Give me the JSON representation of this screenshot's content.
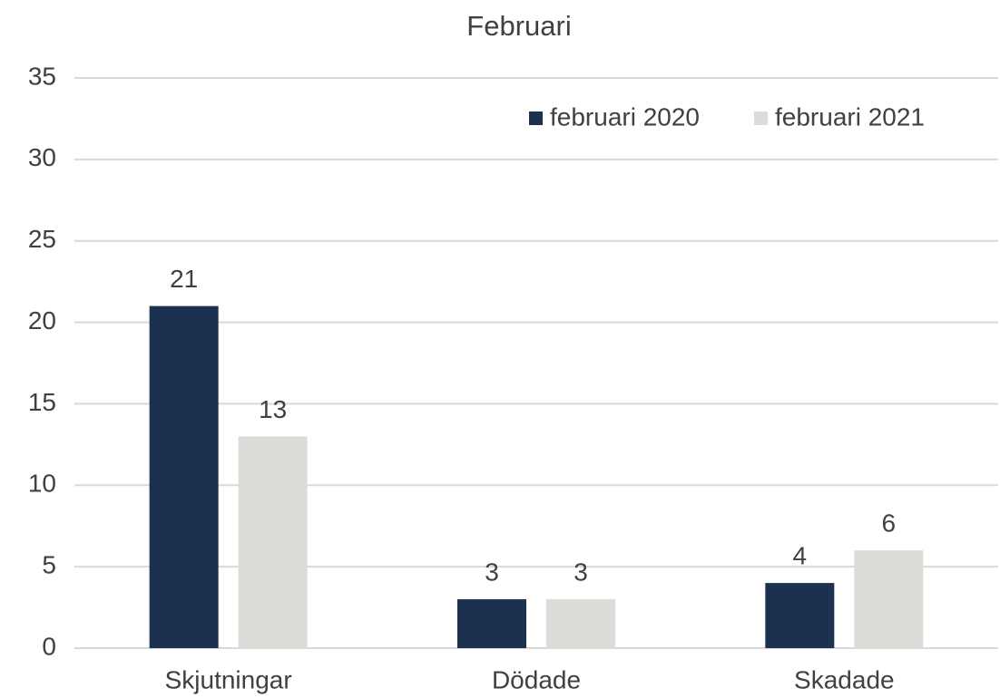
{
  "chart_data": {
    "type": "bar",
    "title": "Februari",
    "categories": [
      "Skjutningar",
      "Dödade",
      "Skadade"
    ],
    "series": [
      {
        "name": "februari 2020",
        "color": "#1c3150",
        "values": [
          21,
          3,
          4
        ]
      },
      {
        "name": "februari 2021",
        "color": "#dddcd8",
        "values": [
          13,
          3,
          6
        ]
      }
    ],
    "ylim": [
      0,
      35
    ],
    "yticks": [
      0,
      5,
      10,
      15,
      20,
      25,
      30,
      35
    ],
    "grid": true,
    "legend": "upper right",
    "data_labels": true
  }
}
